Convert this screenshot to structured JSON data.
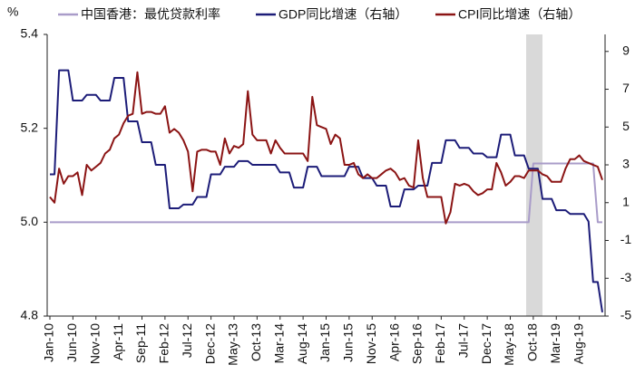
{
  "chart_data": {
    "type": "line",
    "y_label": "%",
    "categories": [
      "Jan-10",
      null,
      null,
      null,
      null,
      "Jun-10",
      null,
      null,
      null,
      null,
      "Nov-10",
      null,
      null,
      null,
      null,
      "Apr-11",
      null,
      null,
      null,
      null,
      "Sep-11",
      null,
      null,
      null,
      null,
      "Feb-12",
      null,
      null,
      null,
      null,
      "Jul-12",
      null,
      null,
      null,
      null,
      "Dec-12",
      null,
      null,
      null,
      null,
      "May-13",
      null,
      null,
      null,
      null,
      "Oct-13",
      null,
      null,
      null,
      null,
      "Mar-14",
      null,
      null,
      null,
      null,
      "Aug-14",
      null,
      null,
      null,
      null,
      "Jan-15",
      null,
      null,
      null,
      null,
      "Jun-15",
      null,
      null,
      null,
      null,
      "Nov-15",
      null,
      null,
      null,
      null,
      "Apr-16",
      null,
      null,
      null,
      null,
      "Sep-16",
      null,
      null,
      null,
      null,
      "Feb-17",
      null,
      null,
      null,
      null,
      "Jul-17",
      null,
      null,
      null,
      null,
      "Dec-17",
      null,
      null,
      null,
      null,
      "May-18",
      null,
      null,
      null,
      null,
      "Oct-18",
      null,
      null,
      null,
      null,
      "Mar-19",
      null,
      null,
      null,
      null,
      "Aug-19",
      null,
      null,
      null,
      null,
      null
    ],
    "series": [
      {
        "name": "中国香港：最优贷款利率",
        "color": "#a99cc9",
        "axis": "y",
        "values": [
          5.0,
          5.0,
          5.0,
          5.0,
          5.0,
          5.0,
          5.0,
          5.0,
          5.0,
          5.0,
          5.0,
          5.0,
          5.0,
          5.0,
          5.0,
          5.0,
          5.0,
          5.0,
          5.0,
          5.0,
          5.0,
          5.0,
          5.0,
          5.0,
          5.0,
          5.0,
          5.0,
          5.0,
          5.0,
          5.0,
          5.0,
          5.0,
          5.0,
          5.0,
          5.0,
          5.0,
          5.0,
          5.0,
          5.0,
          5.0,
          5.0,
          5.0,
          5.0,
          5.0,
          5.0,
          5.0,
          5.0,
          5.0,
          5.0,
          5.0,
          5.0,
          5.0,
          5.0,
          5.0,
          5.0,
          5.0,
          5.0,
          5.0,
          5.0,
          5.0,
          5.0,
          5.0,
          5.0,
          5.0,
          5.0,
          5.0,
          5.0,
          5.0,
          5.0,
          5.0,
          5.0,
          5.0,
          5.0,
          5.0,
          5.0,
          5.0,
          5.0,
          5.0,
          5.0,
          5.0,
          5.0,
          5.0,
          5.0,
          5.0,
          5.0,
          5.0,
          5.0,
          5.0,
          5.0,
          5.0,
          5.0,
          5.0,
          5.0,
          5.0,
          5.0,
          5.0,
          5.0,
          5.0,
          5.0,
          5.0,
          5.0,
          5.0,
          5.0,
          5.0,
          5.0,
          5.125,
          5.125,
          5.125,
          5.125,
          5.125,
          5.125,
          5.125,
          5.125,
          5.125,
          5.125,
          5.125,
          5.125,
          5.125,
          5.125,
          5.0,
          5.0
        ]
      },
      {
        "name": "GDP同比增速（右轴）",
        "color": "#1c1c78",
        "axis": "y2",
        "values": [
          2.5,
          2.5,
          8.0,
          8.0,
          8.0,
          6.4,
          6.4,
          6.4,
          6.7,
          6.7,
          6.7,
          6.4,
          6.4,
          6.4,
          7.6,
          7.6,
          7.6,
          5.3,
          5.3,
          5.3,
          4.2,
          4.2,
          4.2,
          3.0,
          3.0,
          3.0,
          0.7,
          0.7,
          0.7,
          0.9,
          0.9,
          0.9,
          1.3,
          1.3,
          1.3,
          2.5,
          2.5,
          2.5,
          2.9,
          2.9,
          2.9,
          3.2,
          3.2,
          3.2,
          3.0,
          3.0,
          3.0,
          3.0,
          3.0,
          3.0,
          2.6,
          2.6,
          2.6,
          1.8,
          1.8,
          1.8,
          2.9,
          2.9,
          2.9,
          2.4,
          2.4,
          2.4,
          2.4,
          2.4,
          2.4,
          2.9,
          2.9,
          2.9,
          2.3,
          2.3,
          2.3,
          1.9,
          1.9,
          1.9,
          0.8,
          0.8,
          0.8,
          1.7,
          1.7,
          1.7,
          1.9,
          1.9,
          1.9,
          3.1,
          3.1,
          3.1,
          4.3,
          4.3,
          4.3,
          3.9,
          3.9,
          3.9,
          3.6,
          3.6,
          3.6,
          3.4,
          3.4,
          3.4,
          4.6,
          4.6,
          4.6,
          3.5,
          3.5,
          3.5,
          2.8,
          2.8,
          2.8,
          1.2,
          1.2,
          1.2,
          0.6,
          0.6,
          0.6,
          0.4,
          0.4,
          0.4,
          0.4,
          0.0,
          -3.2,
          -3.2,
          -4.8
        ]
      },
      {
        "name": "CPI同比增速（右轴）",
        "color": "#8b1414",
        "axis": "y2",
        "values": [
          1.3,
          1.0,
          2.8,
          2.0,
          2.4,
          2.4,
          2.6,
          1.4,
          3.0,
          2.7,
          2.9,
          3.1,
          3.6,
          3.8,
          4.4,
          4.6,
          5.2,
          5.6,
          5.7,
          7.9,
          5.7,
          5.8,
          5.8,
          5.7,
          5.7,
          6.1,
          4.7,
          4.9,
          4.7,
          4.3,
          3.7,
          1.6,
          3.7,
          3.8,
          3.8,
          3.7,
          3.7,
          3.0,
          4.4,
          3.6,
          4.0,
          3.9,
          4.1,
          6.9,
          4.6,
          4.3,
          4.3,
          4.3,
          3.6,
          4.3,
          3.9,
          3.6,
          3.6,
          3.6,
          3.6,
          3.6,
          3.2,
          6.6,
          5.1,
          5.0,
          4.9,
          4.1,
          4.6,
          4.4,
          3.0,
          3.0,
          3.1,
          2.5,
          2.3,
          2.5,
          2.3,
          2.3,
          2.5,
          2.7,
          2.8,
          2.6,
          2.2,
          2.3,
          1.9,
          1.8,
          4.3,
          2.3,
          1.3,
          1.3,
          1.3,
          1.3,
          -0.1,
          0.5,
          2.0,
          1.9,
          2.0,
          1.9,
          1.6,
          1.4,
          1.5,
          1.7,
          1.7,
          3.1,
          2.6,
          1.9,
          2.1,
          2.4,
          2.4,
          2.3,
          2.7,
          2.7,
          2.7,
          2.5,
          2.4,
          2.1,
          2.1,
          2.1,
          2.8,
          3.3,
          3.3,
          3.5,
          3.2,
          3.1,
          3.0,
          2.9,
          2.2
        ]
      }
    ],
    "ylim": [
      4.8,
      5.4
    ],
    "yticks": [
      4.8,
      {
        "value": 5.0,
        "label": "5.0"
      },
      5.2,
      5.4
    ],
    "y2lim": [
      -5,
      9.9
    ],
    "y2ticks": [
      -5,
      -3,
      -1,
      1,
      3,
      5,
      7,
      9
    ]
  }
}
